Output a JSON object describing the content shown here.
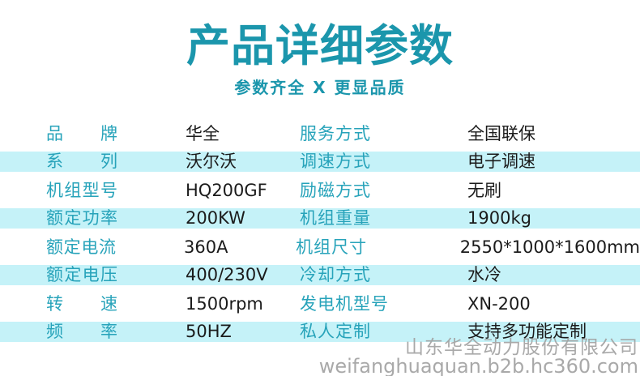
{
  "title": "产品详细参数",
  "subtitle": "参数齐全 X 更显品质",
  "colors": {
    "accent": "#1b96ac",
    "label": "#27a3ba",
    "value": "#1b1b1b",
    "band": "#c5f2f8",
    "watermark": "#a2a2a2"
  },
  "table": {
    "rows": [
      {
        "label1": "品牌",
        "value1": "华全",
        "label2": "服务方式",
        "value2": "全国联保",
        "shaded": false
      },
      {
        "label1": "系列",
        "value1": "沃尔沃",
        "label2": "调速方式",
        "value2": "电子调速",
        "shaded": true
      },
      {
        "label1": "机组型号",
        "value1": "HQ200GF",
        "label2": "励磁方式",
        "value2": "无刷",
        "shaded": false
      },
      {
        "label1": "额定功率",
        "value1": "200KW",
        "label2": "机组重量",
        "value2": "1900kg",
        "shaded": true
      },
      {
        "label1": "额定电流",
        "value1": "360A",
        "label2": "机组尺寸",
        "value2": "2550*1000*1600mm",
        "shaded": false
      },
      {
        "label1": "额定电压",
        "value1": "400/230V",
        "label2": "冷却方式",
        "value2": "水冷",
        "shaded": true
      },
      {
        "label1": "转速",
        "value1": "1500rpm",
        "label2": "发电机型号",
        "value2": "XN-200",
        "shaded": false
      },
      {
        "label1": "频率",
        "value1": "50HZ",
        "label2": "私人定制",
        "value2": "支持多功能定制",
        "shaded": true
      }
    ]
  },
  "watermark": {
    "company": "山东华全动力股份有限公司",
    "url": "weifanghuaquan.b2b.hc360.com"
  }
}
